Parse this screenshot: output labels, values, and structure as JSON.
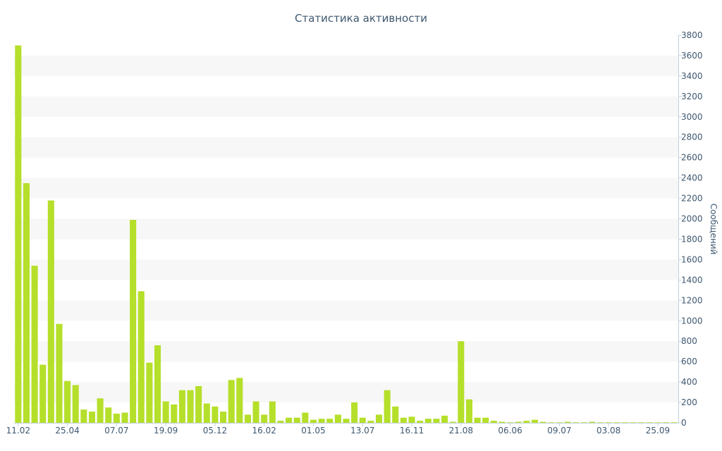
{
  "chart_data": {
    "type": "bar",
    "title": "Статистика активности",
    "xlabel": "",
    "ylabel": "Сообщений",
    "y_axis_side": "right",
    "ylim": [
      0,
      3800
    ],
    "y_ticks": [
      0,
      200,
      400,
      600,
      800,
      1000,
      1200,
      1400,
      1600,
      1800,
      2000,
      2200,
      2400,
      2600,
      2800,
      3000,
      3200,
      3400,
      3600,
      3800
    ],
    "x_tick_labels": [
      {
        "label": "11.02",
        "index": 0
      },
      {
        "label": "25.04",
        "index": 6
      },
      {
        "label": "07.07",
        "index": 12
      },
      {
        "label": "19.09",
        "index": 18
      },
      {
        "label": "05.12",
        "index": 24
      },
      {
        "label": "16.02",
        "index": 30
      },
      {
        "label": "01.05",
        "index": 36
      },
      {
        "label": "13.07",
        "index": 42
      },
      {
        "label": "16.11",
        "index": 48
      },
      {
        "label": "21.08",
        "index": 54
      },
      {
        "label": "06.06",
        "index": 60
      },
      {
        "label": "09.07",
        "index": 66
      },
      {
        "label": "03.08",
        "index": 72
      },
      {
        "label": "25.09",
        "index": 78
      }
    ],
    "grid": "alternating horizontal bands",
    "bar_color": "#B5DF2A",
    "band_color": "#F7F7F7",
    "text_color": "#3E576F",
    "axis_color": "#C0D0E0",
    "series": [
      {
        "values": [
          3700,
          2350,
          1540,
          570,
          2180,
          970,
          410,
          370,
          130,
          110,
          240,
          150,
          90,
          100,
          1990,
          1290,
          590,
          760,
          210,
          180,
          320,
          320,
          360,
          190,
          160,
          110,
          420,
          440,
          80,
          210,
          80,
          210,
          20,
          50,
          50,
          100,
          30,
          40,
          40,
          80,
          40,
          200,
          50,
          20,
          80,
          320,
          160,
          50,
          60,
          20,
          40,
          40,
          70,
          10,
          800,
          230,
          50,
          50,
          20,
          10,
          5,
          10,
          20,
          30,
          10,
          5,
          5,
          10,
          5,
          5,
          10,
          5,
          5,
          5,
          5,
          5,
          5,
          5,
          5,
          5,
          5
        ]
      }
    ]
  }
}
